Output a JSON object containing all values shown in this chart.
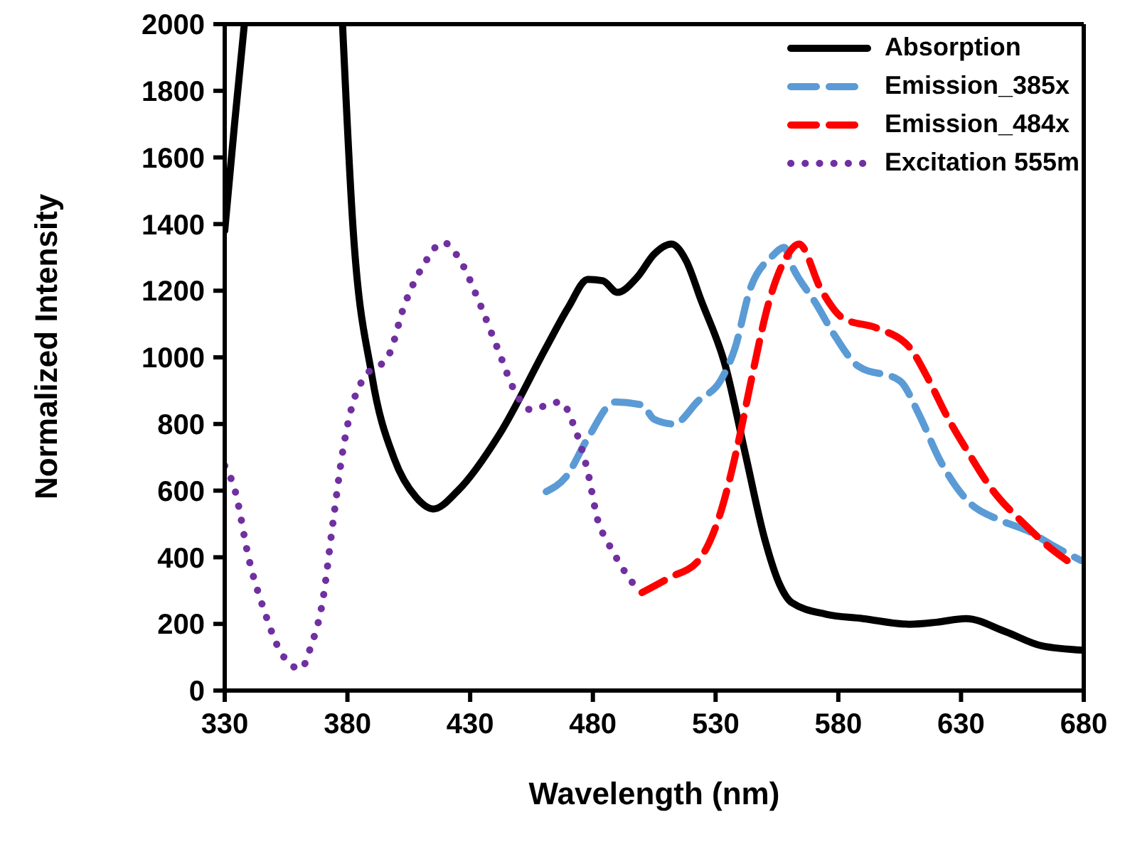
{
  "chart_data": {
    "type": "line",
    "xlabel": "Wavelength (nm)",
    "ylabel": "Normalized Intensity",
    "xlim": [
      330,
      680
    ],
    "xticks": [
      330,
      380,
      430,
      480,
      530,
      580,
      630,
      680
    ],
    "ylim": [
      0,
      2000
    ],
    "yticks": [
      0,
      200,
      400,
      600,
      800,
      1000,
      1200,
      1400,
      1600,
      1800,
      2000
    ],
    "grid": false,
    "legend": "top right",
    "marker": "none",
    "series": [
      {
        "name": "Absorption",
        "color": "#000000",
        "line_style": "solid",
        "x": [
          330,
          334,
          338,
          358,
          378,
          382,
          390,
          399,
          408,
          415,
          425,
          442,
          461,
          470,
          478,
          484,
          490,
          498,
          505,
          512,
          518,
          524,
          534,
          542,
          550,
          556,
          561,
          575,
          590,
          609,
          620,
          632,
          648,
          663,
          680
        ],
        "values": [
          1380,
          1700,
          2000,
          null,
          2000,
          1420,
          944,
          697,
          580,
          545,
          600,
          770,
          1030,
          1150,
          1234,
          1230,
          1195,
          1240,
          1310,
          1340,
          1290,
          1173,
          974,
          714,
          455,
          320,
          264,
          229,
          216,
          199,
          205,
          216,
          177,
          134,
          121
        ]
      },
      {
        "name": "Emission_385x",
        "color": "#5b9bd5",
        "line_style": "dashed",
        "x": [
          461,
          469,
          478,
          489,
          500,
          505,
          513,
          523,
          532,
          538,
          544,
          553,
          558,
          561,
          571,
          579,
          588,
          605,
          613,
          621,
          633,
          646,
          657,
          667,
          679
        ],
        "values": [
          597,
          641,
          758,
          866,
          857,
          814,
          800,
          870,
          930,
          1030,
          1203,
          1303,
          1330,
          1277,
          1160,
          1060,
          974,
          930,
          827,
          697,
          567,
          511,
          480,
          437,
          390
        ]
      },
      {
        "name": "Emission_484x",
        "color": "#ff0000",
        "line_style": "dashed",
        "x": [
          500,
          511,
          523,
          531,
          540,
          544,
          552,
          559,
          564,
          573,
          582,
          596,
          609,
          617,
          624,
          633,
          642,
          656,
          667,
          675
        ],
        "values": [
          294,
          338,
          390,
          511,
          770,
          913,
          1173,
          1303,
          1340,
          1203,
          1117,
          1087,
          1030,
          930,
          827,
          714,
          610,
          498,
          424,
          381
        ]
      },
      {
        "name": "Excitation 555m",
        "color": "#7030a0",
        "line_style": "dotted",
        "x": [
          330,
          334,
          340,
          346,
          353,
          361,
          365,
          370,
          374,
          378,
          382,
          386,
          397,
          403,
          411,
          419,
          426,
          434,
          441,
          449,
          454,
          467,
          472,
          478,
          482,
          486,
          491,
          496,
          498
        ],
        "values": [
          675,
          606,
          390,
          242,
          113,
          65,
          130,
          273,
          498,
          714,
          857,
          930,
          1009,
          1152,
          1277,
          1345,
          1290,
          1160,
          1030,
          887,
          844,
          866,
          800,
          654,
          511,
          446,
          381,
          325,
          310
        ]
      }
    ]
  }
}
